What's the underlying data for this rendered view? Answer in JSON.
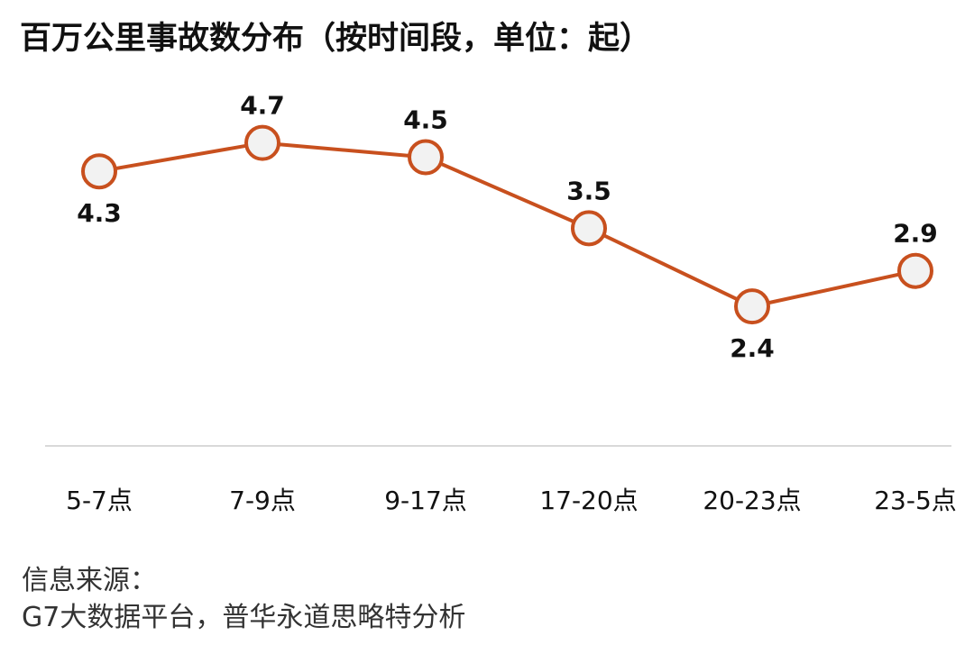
{
  "chart_data": {
    "type": "line",
    "title": "百万公里事故数分布（按时间段，单位：起）",
    "categories": [
      "5-7点",
      "7-9点",
      "9-17点",
      "17-20点",
      "20-23点",
      "23-5点"
    ],
    "series": [
      {
        "values": [
          4.3,
          4.7,
          4.5,
          3.5,
          2.4,
          2.9
        ]
      }
    ],
    "data_labels": [
      "4.3",
      "4.7",
      "4.5",
      "3.5",
      "2.4",
      "2.9"
    ],
    "xlabel": "",
    "ylabel": "",
    "ylim": [
      0,
      5
    ],
    "grid": false,
    "legend": "none",
    "colors": {
      "line": "#c8501e",
      "marker_fill": "#f2f2f2",
      "axis": "#d9d9d9"
    }
  },
  "source": {
    "label": "信息来源：",
    "text": "G7大数据平台，普华永道思略特分析"
  }
}
